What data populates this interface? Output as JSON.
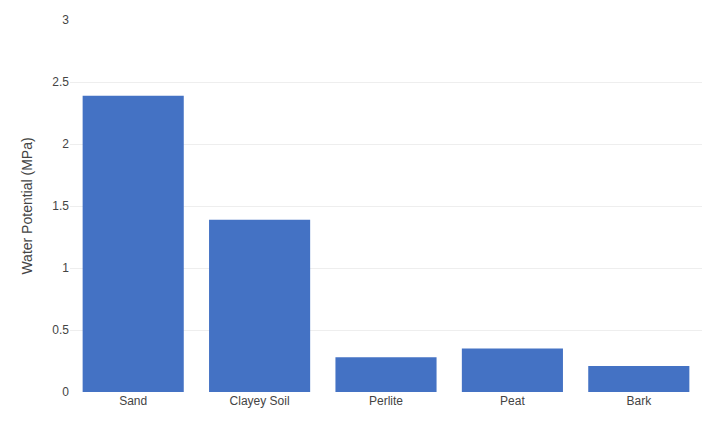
{
  "chart_data": {
    "type": "bar",
    "categories": [
      "Sand",
      "Clayey Soil",
      "Perlite",
      "Peat",
      "Bark"
    ],
    "values": [
      2.39,
      1.39,
      0.28,
      0.35,
      0.21
    ],
    "color": "#4472C4",
    "ylabel": "Water Potential (MPa)",
    "ylim": [
      0,
      3
    ],
    "yticks": [
      0,
      0.5,
      1,
      1.5,
      2,
      2.5,
      3
    ],
    "grid": true
  }
}
